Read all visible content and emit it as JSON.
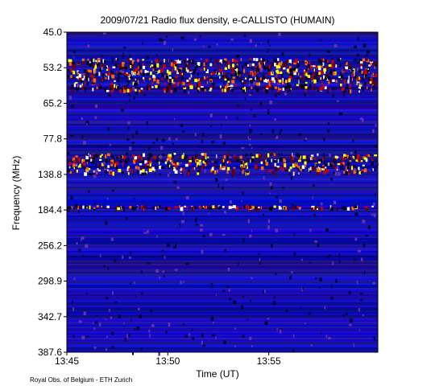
{
  "chart_data": {
    "type": "spectrogram",
    "title": "2009/07/21  Radio flux density, e-CALLISTO (HUMAIN)",
    "x_label": "Time (UT)",
    "y_label": "Frequency (MHz)",
    "footer": "Royal Obs. of Belgium - ETH Zurich",
    "xlim": [
      825,
      840.4
    ],
    "xticks": [
      {
        "value": 825,
        "label": "13:45"
      },
      {
        "value": 830,
        "label": "13:50"
      },
      {
        "value": 835,
        "label": "13:55"
      }
    ],
    "yticks": [
      {
        "value": 45.0,
        "label": "45.0"
      },
      {
        "value": 53.2,
        "label": "53.2"
      },
      {
        "value": 65.2,
        "label": "65.2"
      },
      {
        "value": 77.8,
        "label": "77.8"
      },
      {
        "value": 138.8,
        "label": "138.8"
      },
      {
        "value": 184.4,
        "label": "184.4"
      },
      {
        "value": 256.2,
        "label": "256.2"
      },
      {
        "value": 298.9,
        "label": "298.9"
      },
      {
        "value": 342.7,
        "label": "342.7"
      },
      {
        "value": 387.6,
        "label": "387.6"
      }
    ]
  }
}
